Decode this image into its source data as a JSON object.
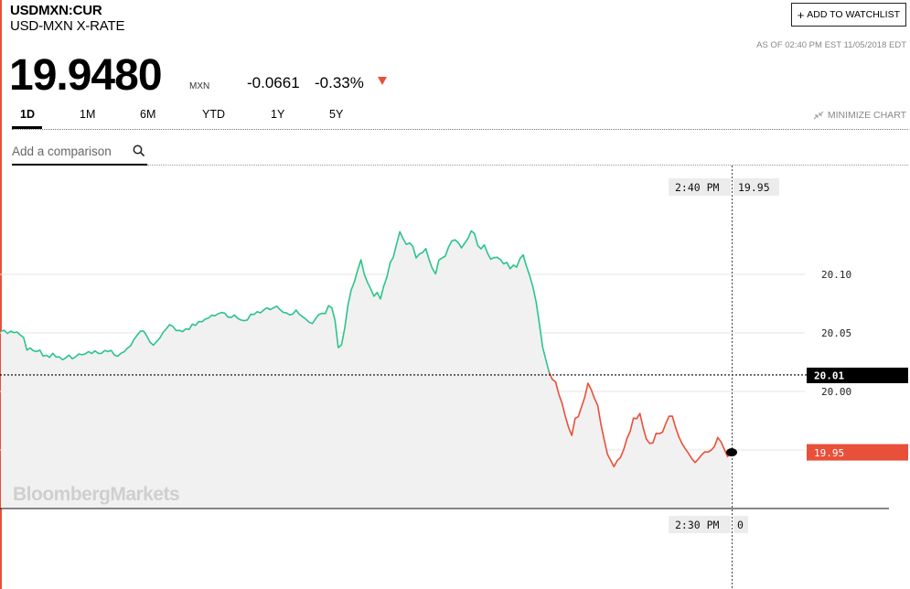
{
  "header": {
    "ticker": "USDMXN:CUR",
    "name": "USD-MXN X-RATE",
    "watchlist_label": "ADD TO WATCHLIST",
    "watchlist_plus": "+",
    "as_of": "AS OF 02:40 PM EST 11/05/2018 EDT"
  },
  "quote": {
    "price": "19.9480",
    "unit": "MXN",
    "change": "-0.0661",
    "change_pct": "-0.33%",
    "direction": "down"
  },
  "tabs": [
    "1D",
    "1M",
    "6M",
    "YTD",
    "1Y",
    "5Y"
  ],
  "active_tab": "1D",
  "minimize_label": "MINIMIZE CHART",
  "compare": {
    "placeholder": "Add a comparison"
  },
  "colors": {
    "up": "#2bc48a",
    "down": "#e8503a",
    "accent": "#e8503a"
  },
  "chart_data": {
    "type": "line",
    "watermark": "BloombergMarkets",
    "y_ticks": [
      20.1,
      20.05,
      20.0
    ],
    "y_tick_labels": [
      "20.10",
      "20.05",
      "20.00"
    ],
    "ylim": [
      19.91,
      20.151
    ],
    "previous_close": 20.0141,
    "previous_close_label": "20.01",
    "last_value": 19.948,
    "last_value_label": "19.95",
    "crosshair": {
      "time_label": "2:40 PM",
      "value_label": "19.95",
      "bottom_time_label": "2:30 PM",
      "bottom_value_label": "0"
    },
    "series": [
      {
        "values": [
          20.0515,
          20.0523,
          20.0495,
          20.0515,
          20.0502,
          20.0508,
          20.0481,
          20.0461,
          20.0353,
          20.0372,
          20.0348,
          20.0341,
          20.0353,
          20.0302,
          20.0309,
          20.0291,
          20.0326,
          20.0294,
          20.0295,
          20.0271,
          20.0287,
          20.031,
          20.028,
          20.0295,
          20.032,
          20.0314,
          20.032,
          20.0341,
          20.0324,
          20.0347,
          20.0326,
          20.0325,
          20.035,
          20.0341,
          20.0351,
          20.031,
          20.0301,
          20.0326,
          20.034,
          20.037,
          20.0391,
          20.0443,
          20.0481,
          20.0515,
          20.0515,
          20.0472,
          20.042,
          20.0395,
          20.0426,
          20.0457,
          20.0504,
          20.0536,
          20.057,
          20.0556,
          20.052,
          20.0522,
          20.0511,
          20.0535,
          20.053,
          20.0575,
          20.0565,
          20.0597,
          20.0596,
          20.0618,
          20.0627,
          20.0651,
          20.0647,
          20.0664,
          20.0674,
          20.0669,
          20.0635,
          20.0632,
          20.0652,
          20.0625,
          20.061,
          20.0605,
          20.0611,
          20.0659,
          20.0657,
          20.0681,
          20.0671,
          20.0695,
          20.0715,
          20.0699,
          20.0713,
          20.0729,
          20.0701,
          20.0676,
          20.0671,
          20.0654,
          20.0661,
          20.0695,
          20.0659,
          20.0638,
          20.0618,
          20.0592,
          20.058,
          20.062,
          20.0657,
          20.0667,
          20.0666,
          20.0733,
          20.0715,
          20.0608,
          20.0374,
          20.0398,
          20.0539,
          20.0738,
          20.0867,
          20.0938,
          20.1037,
          20.1125,
          20.1004,
          20.0931,
          20.0877,
          20.0813,
          20.0846,
          20.0791,
          20.0898,
          20.0978,
          20.11,
          20.1148,
          20.1261,
          20.1365,
          20.1305,
          20.1257,
          20.1269,
          20.124,
          20.1141,
          20.1173,
          20.1187,
          20.122,
          20.1124,
          20.1051,
          20.1004,
          20.1122,
          20.114,
          20.1156,
          20.1233,
          20.1286,
          20.1295,
          20.1272,
          20.1226,
          20.1267,
          20.1307,
          20.1371,
          20.1349,
          20.1247,
          20.1218,
          20.1252,
          20.1183,
          20.113,
          20.1143,
          20.1146,
          20.1126,
          20.109,
          20.1102,
          20.1048,
          20.108,
          20.1062,
          20.1134,
          20.1167,
          20.107,
          20.099,
          20.0893,
          20.0765,
          20.0582,
          20.038,
          20.0272,
          20.0163,
          20.0103,
          20.0082,
          19.9977,
          19.9898,
          19.9788,
          19.9693,
          19.9624,
          19.9769,
          19.9784,
          19.9869,
          19.9951,
          20.007,
          20.0015,
          19.994,
          19.988,
          19.9717,
          19.9585,
          19.9464,
          19.941,
          19.9357,
          19.9409,
          19.9436,
          19.9504,
          19.9598,
          19.9661,
          19.9772,
          19.9767,
          19.9812,
          19.9692,
          19.9593,
          19.9556,
          19.9561,
          19.9642,
          19.964,
          19.9653,
          19.9728,
          19.9788,
          19.9788,
          19.9692,
          19.9612,
          19.9555,
          19.951,
          19.9471,
          19.9426,
          19.9393,
          19.9422,
          19.9458,
          19.9484,
          19.9482,
          19.9499,
          19.9531,
          19.9607,
          19.9569,
          19.9508,
          19.9444,
          19.948
        ]
      }
    ]
  }
}
